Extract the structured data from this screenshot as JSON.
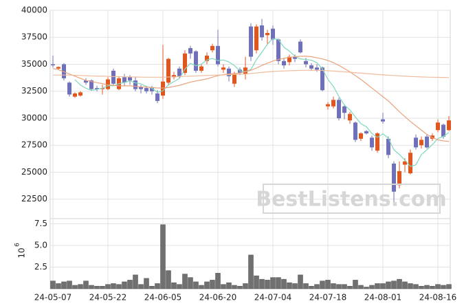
{
  "chart_data": [
    {
      "type": "candlestick",
      "open": [
        35000,
        34600,
        35000,
        33300,
        32000,
        32100,
        33500,
        33500,
        32800,
        32700,
        32700,
        34400,
        32700,
        33800,
        33800,
        33500,
        32900,
        32800,
        32800,
        32300,
        32100,
        33300,
        33800,
        34600,
        34200,
        36500,
        36200,
        34400,
        35300,
        36300,
        36700,
        34500,
        34600,
        33200,
        34500,
        34100,
        38500,
        36300,
        38600,
        37700,
        38300,
        37300,
        35300,
        35200,
        35700,
        37100,
        35300,
        34900,
        34700,
        34700,
        31100,
        31100,
        31700,
        31100,
        29800,
        29600,
        28100,
        28800,
        28200,
        27000,
        29900,
        28100,
        25800,
        23800,
        25700,
        24900,
        28200,
        27500,
        28300,
        28100,
        28900,
        29400,
        28900
      ],
      "high": [
        35800,
        34800,
        35100,
        33400,
        32400,
        32500,
        33700,
        33600,
        33000,
        33100,
        33800,
        34600,
        33900,
        34100,
        34000,
        33800,
        33100,
        33000,
        33000,
        32600,
        36800,
        35600,
        34300,
        34800,
        36300,
        36700,
        36300,
        35000,
        36100,
        36900,
        38200,
        35000,
        34800,
        34300,
        34700,
        35700,
        38800,
        38700,
        39200,
        38200,
        38600,
        37400,
        35600,
        35900,
        35900,
        37300,
        35600,
        35100,
        35000,
        34800,
        31500,
        32000,
        31900,
        31300,
        30600,
        29700,
        28700,
        28900,
        28400,
        28700,
        30500,
        28300,
        26000,
        26000,
        26300,
        27100,
        28500,
        28300,
        28500,
        28600,
        29900,
        29500,
        30200
      ],
      "low": [
        34700,
        34500,
        33500,
        32000,
        31900,
        32000,
        33100,
        32600,
        32500,
        32200,
        32600,
        33000,
        32600,
        33000,
        33100,
        32500,
        32300,
        32300,
        32200,
        31400,
        31800,
        33100,
        33600,
        33700,
        34000,
        35500,
        34200,
        34200,
        35000,
        36100,
        34800,
        34200,
        33400,
        32900,
        34000,
        33600,
        35300,
        36000,
        37200,
        36800,
        36800,
        35000,
        34600,
        34900,
        35200,
        36000,
        34700,
        34400,
        34300,
        32500,
        30800,
        30900,
        29800,
        29900,
        29500,
        27800,
        27900,
        28500,
        27000,
        26800,
        29500,
        26300,
        22100,
        23500,
        25000,
        24800,
        27100,
        27200,
        27200,
        27900,
        28700,
        28100,
        28800
      ],
      "close": [
        34900,
        34750,
        33700,
        32200,
        32300,
        32400,
        33300,
        32700,
        32700,
        32800,
        33600,
        33200,
        33700,
        33300,
        33500,
        32700,
        32700,
        32500,
        32500,
        31600,
        33400,
        35500,
        34000,
        33900,
        36000,
        36000,
        34400,
        34800,
        35800,
        36700,
        35000,
        34700,
        33900,
        34100,
        34200,
        34700,
        35700,
        38500,
        37500,
        37900,
        37300,
        35300,
        34900,
        35700,
        35500,
        36100,
        35000,
        34600,
        34500,
        32600,
        31300,
        31700,
        30000,
        30500,
        30400,
        28000,
        28600,
        28600,
        27300,
        28600,
        29700,
        26600,
        23200,
        25100,
        26000,
        26800,
        27300,
        28000,
        27300,
        28400,
        29600,
        28300,
        29800
      ],
      "up_color": "#e0561f",
      "down_color": "#6f70b8",
      "series": [
        {
          "color": "#7fd6be",
          "values": [
            null,
            null,
            null,
            null,
            33570,
            33070,
            32780,
            32580,
            32680,
            32780,
            33020,
            33000,
            33200,
            33320,
            33460,
            33280,
            33180,
            32940,
            32780,
            32400,
            32540,
            33100,
            33400,
            33680,
            34560,
            35080,
            34860,
            35020,
            35400,
            35540,
            35340,
            35400,
            35220,
            34880,
            34380,
            34320,
            34520,
            35440,
            36120,
            36860,
            37380,
            37300,
            36580,
            36220,
            35740,
            35500,
            35440,
            35380,
            35140,
            34560,
            33600,
            32940,
            32020,
            31220,
            30780,
            30120,
            29500,
            29220,
            28580,
            28220,
            28560,
            28160,
            27080,
            26640,
            26120,
            25540,
            25680,
            26640,
            27080,
            27560,
            28120,
            28320,
            28680
          ]
        },
        {
          "color": "#e9a27e",
          "values": [
            34600,
            34500,
            34300,
            34100,
            33900,
            33700,
            33500,
            33400,
            33300,
            33200,
            33100,
            33050,
            33000,
            33000,
            33000,
            32950,
            32900,
            32900,
            32850,
            32800,
            32800,
            32850,
            32950,
            33050,
            33200,
            33350,
            33450,
            33550,
            33650,
            33800,
            33950,
            34050,
            34100,
            34150,
            34200,
            34300,
            34450,
            34650,
            34900,
            35100,
            35300,
            35450,
            35550,
            35650,
            35700,
            35750,
            35750,
            35700,
            35600,
            35500,
            35350,
            35150,
            34900,
            34600,
            34300,
            33950,
            33600,
            33200,
            32800,
            32400,
            32000,
            31600,
            31100,
            30600,
            30150,
            29700,
            29300,
            28900,
            28500,
            28200,
            28000,
            27900,
            27850
          ]
        },
        {
          "color": "#f0bc9c",
          "values": [
            34000,
            34000,
            34000,
            34000,
            33980,
            33960,
            33940,
            33920,
            33900,
            33900,
            33880,
            33860,
            33850,
            33840,
            33830,
            33820,
            33810,
            33800,
            33800,
            33800,
            33800,
            33820,
            33840,
            33860,
            33880,
            33900,
            33920,
            33940,
            33960,
            33980,
            34000,
            34020,
            34040,
            34060,
            34080,
            34100,
            34150,
            34200,
            34250,
            34300,
            34330,
            34360,
            34380,
            34400,
            34420,
            34430,
            34440,
            34450,
            34440,
            34430,
            34400,
            34370,
            34340,
            34300,
            34260,
            34220,
            34180,
            34140,
            34100,
            34060,
            34020,
            33990,
            33960,
            33930,
            33900,
            33870,
            33850,
            33830,
            33810,
            33800,
            33790,
            33780,
            33770
          ]
        }
      ],
      "ylim": [
        20700,
        40000
      ],
      "yticks": [
        22500,
        25000,
        27500,
        30000,
        32500,
        35000,
        37500,
        40000
      ],
      "grid": true,
      "watermark": "BestListens.com"
    },
    {
      "type": "bar",
      "categories": [
        "24-05-07",
        null,
        null,
        null,
        null,
        null,
        null,
        null,
        null,
        null,
        "24-05-22",
        null,
        null,
        null,
        null,
        null,
        null,
        null,
        null,
        null,
        "24-06-05",
        null,
        null,
        null,
        null,
        null,
        null,
        null,
        null,
        null,
        "24-06-20",
        null,
        null,
        null,
        null,
        null,
        null,
        null,
        null,
        null,
        "24-07-04",
        null,
        null,
        null,
        null,
        null,
        null,
        null,
        null,
        null,
        "24-07-18",
        null,
        null,
        null,
        null,
        null,
        null,
        null,
        null,
        null,
        "24-08-01",
        null,
        null,
        null,
        null,
        null,
        null,
        null,
        null,
        null,
        "24-08-16",
        null,
        null
      ],
      "values": [
        0.9,
        0.6,
        0.8,
        0.9,
        0.4,
        0.5,
        0.9,
        0.4,
        0.3,
        0.3,
        0.5,
        0.6,
        0.5,
        0.8,
        1.0,
        1.6,
        0.5,
        1.2,
        0.3,
        0.6,
        7.4,
        2.1,
        0.7,
        0.5,
        1.7,
        1.3,
        0.8,
        0.4,
        0.8,
        1.0,
        1.8,
        0.5,
        0.7,
        0.4,
        0.3,
        0.6,
        3.9,
        1.5,
        1.1,
        1.0,
        1.3,
        1.3,
        1.1,
        0.7,
        0.6,
        1.6,
        0.6,
        0.3,
        0.5,
        0.9,
        1.0,
        0.6,
        0.5,
        0.5,
        0.3,
        1.0,
        0.4,
        0.2,
        0.4,
        0.6,
        0.6,
        0.8,
        0.9,
        1.1,
        0.8,
        0.6,
        0.5,
        0.3,
        0.4,
        0.3,
        0.5,
        0.4,
        0.5
      ],
      "color": "#707070",
      "ylim": [
        0,
        8.1
      ],
      "yticks": [
        2.5,
        {
          "value": 5,
          "label": "5.0"
        },
        7.5
      ],
      "grid": true,
      "ylabel": "10",
      "ylabel_exponent": "6"
    }
  ]
}
